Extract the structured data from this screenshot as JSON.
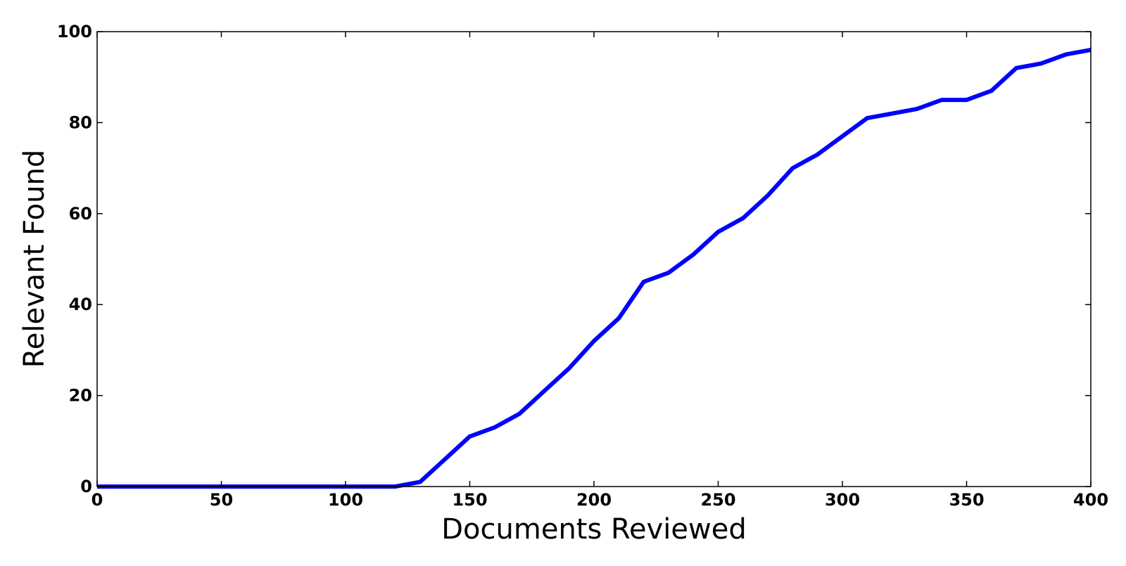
{
  "chart_data": {
    "type": "line",
    "title": "",
    "xlabel": "Documents Reviewed",
    "ylabel": "Relevant Found",
    "xlim": [
      0,
      400
    ],
    "ylim": [
      0,
      100
    ],
    "xticks": [
      0,
      50,
      100,
      150,
      200,
      250,
      300,
      350,
      400
    ],
    "yticks": [
      0,
      20,
      40,
      60,
      80,
      100
    ],
    "grid": false,
    "legend": "none",
    "series": [
      {
        "color": "#0000ff",
        "x": [
          0,
          10,
          20,
          30,
          40,
          50,
          60,
          70,
          80,
          90,
          100,
          110,
          120,
          130,
          140,
          150,
          160,
          170,
          180,
          190,
          200,
          210,
          220,
          230,
          240,
          250,
          260,
          270,
          280,
          290,
          300,
          310,
          320,
          330,
          340,
          350,
          360,
          370,
          380,
          390,
          400
        ],
        "y": [
          0,
          0,
          0,
          0,
          0,
          0,
          0,
          0,
          0,
          0,
          0,
          0,
          0,
          1,
          6,
          11,
          13,
          16,
          21,
          26,
          32,
          37,
          45,
          47,
          51,
          56,
          59,
          64,
          70,
          73,
          77,
          81,
          82,
          83,
          85,
          85,
          87,
          92,
          93,
          95,
          96
        ]
      }
    ]
  }
}
